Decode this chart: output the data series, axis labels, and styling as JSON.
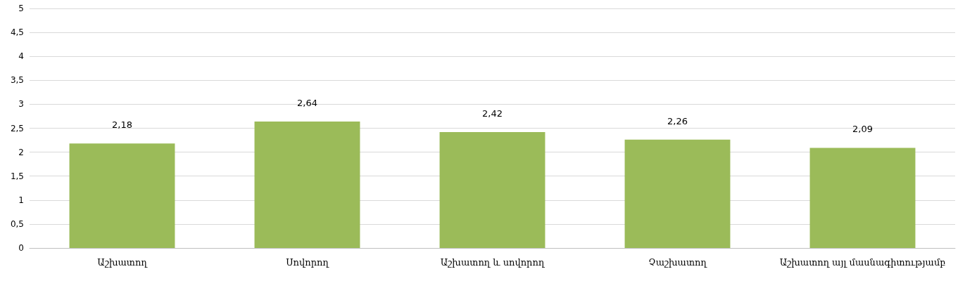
{
  "chart_data": {
    "type": "bar",
    "categories": [
      "Աշխատող",
      "Սովորող",
      "Աշխատող և սովորող",
      "Չաշխատող",
      "Աշխատող այլ մասնագիտությամբ"
    ],
    "values": [
      2.18,
      2.64,
      2.42,
      2.26,
      2.09
    ],
    "value_labels": [
      "2,18",
      "2,64",
      "2,42",
      "2,26",
      "2,09"
    ],
    "color": "#9bbb59",
    "ylim": [
      0,
      5
    ],
    "yticks": [
      0,
      {
        "value": 0.5,
        "label": "0,5"
      },
      1,
      {
        "value": 1.5,
        "label": "1,5"
      },
      2,
      {
        "value": 2.5,
        "label": "2,5"
      },
      3,
      {
        "value": 3.5,
        "label": "3,5"
      },
      4,
      {
        "value": 4.5,
        "label": "4,5"
      },
      5
    ],
    "grid": "y"
  }
}
